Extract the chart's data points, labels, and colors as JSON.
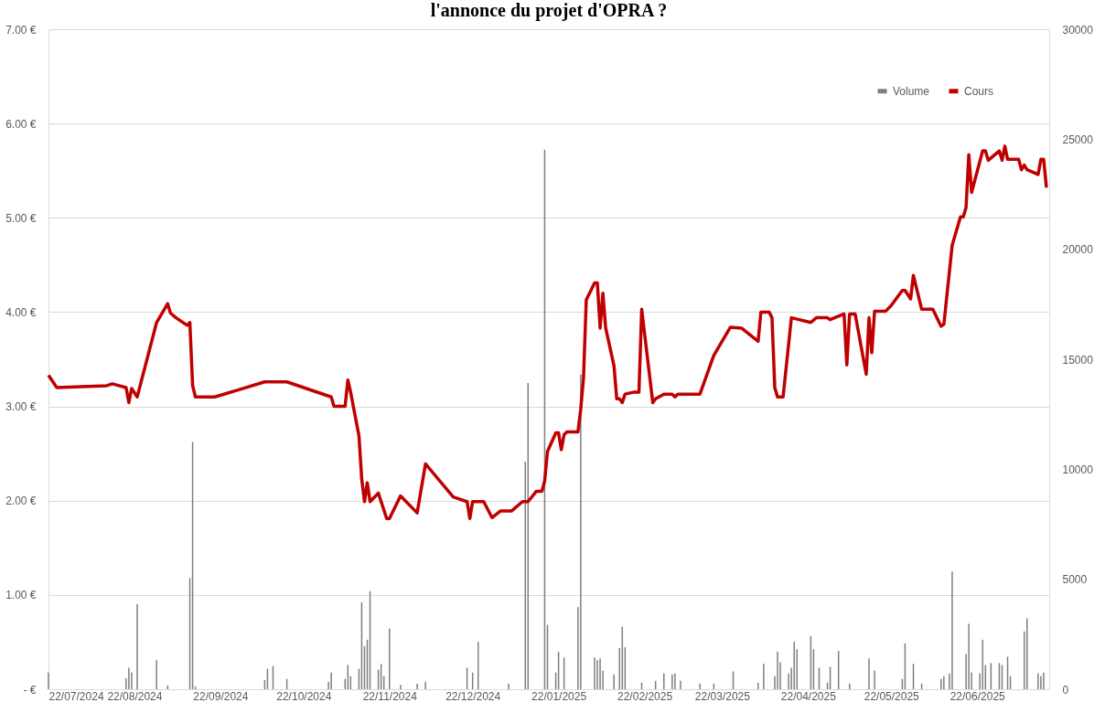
{
  "chart_data": {
    "type": "line",
    "title": "l'annonce du projet d'OPRA ?",
    "xlim": [
      "2024-07-22",
      "2025-07-18"
    ],
    "xticks": [
      {
        "value": "2024-07-22",
        "label": "22/07/2024"
      },
      {
        "value": "2024-08-22",
        "label": "22/08/2024"
      },
      {
        "value": "2024-09-22",
        "label": "22/09/2024"
      },
      {
        "value": "2024-10-22",
        "label": "22/10/2024"
      },
      {
        "value": "2024-11-22",
        "label": "22/11/2024"
      },
      {
        "value": "2024-12-22",
        "label": "22/12/2024"
      },
      {
        "value": "2025-01-22",
        "label": "22/01/2025"
      },
      {
        "value": "2025-02-22",
        "label": "22/02/2025"
      },
      {
        "value": "2025-03-22",
        "label": "22/03/2025"
      },
      {
        "value": "2025-04-22",
        "label": "22/04/2025"
      },
      {
        "value": "2025-05-22",
        "label": "22/05/2025"
      },
      {
        "value": "2025-06-22",
        "label": "22/06/2025"
      }
    ],
    "ylim": [
      0,
      7
    ],
    "yticks": [
      {
        "value": 0,
        "label": "-   €"
      },
      {
        "value": 1,
        "label": "1.00 €"
      },
      {
        "value": 2,
        "label": "2.00 €"
      },
      {
        "value": 3,
        "label": "3.00 €"
      },
      {
        "value": 4,
        "label": "4.00 €"
      },
      {
        "value": 5,
        "label": "5.00 €"
      },
      {
        "value": 6,
        "label": "6.00 €"
      },
      {
        "value": 7,
        "label": "7.00 €"
      }
    ],
    "y2lim": [
      0,
      30000
    ],
    "y2ticks": [
      0,
      5000,
      10000,
      15000,
      20000,
      25000,
      30000
    ],
    "grid": "y",
    "legend": "top right",
    "line_style": "solid",
    "marker": "none",
    "series": [
      {
        "name": "Volume",
        "type": "bar",
        "axis": "y2",
        "color": "#7f7f7f",
        "x": [
          "2024-07-22",
          "2024-08-19",
          "2024-08-20",
          "2024-08-21",
          "2024-08-23",
          "2024-08-30",
          "2024-09-03",
          "2024-09-11",
          "2024-09-12",
          "2024-09-13",
          "2024-10-08",
          "2024-10-09",
          "2024-10-11",
          "2024-10-16",
          "2024-10-31",
          "2024-11-01",
          "2024-11-06",
          "2024-11-07",
          "2024-11-08",
          "2024-11-11",
          "2024-11-12",
          "2024-11-13",
          "2024-11-14",
          "2024-11-15",
          "2024-11-18",
          "2024-11-19",
          "2024-11-20",
          "2024-11-22",
          "2024-11-26",
          "2024-12-02",
          "2024-12-05",
          "2024-12-20",
          "2024-12-22",
          "2024-12-24",
          "2025-01-04",
          "2025-01-10",
          "2025-01-11",
          "2025-01-17",
          "2025-01-18",
          "2025-01-21",
          "2025-01-22",
          "2025-01-24",
          "2025-01-29",
          "2025-01-30",
          "2025-02-04",
          "2025-02-05",
          "2025-02-06",
          "2025-02-07",
          "2025-02-11",
          "2025-02-13",
          "2025-02-14",
          "2025-02-15",
          "2025-02-21",
          "2025-02-26",
          "2025-03-01",
          "2025-03-04",
          "2025-03-05",
          "2025-03-07",
          "2025-03-14",
          "2025-03-19",
          "2025-03-26",
          "2025-04-04",
          "2025-04-06",
          "2025-04-10",
          "2025-04-11",
          "2025-04-12",
          "2025-04-15",
          "2025-04-16",
          "2025-04-17",
          "2025-04-18",
          "2025-04-23",
          "2025-04-24",
          "2025-04-26",
          "2025-04-29",
          "2025-04-30",
          "2025-05-03",
          "2025-05-07",
          "2025-05-14",
          "2025-05-16",
          "2025-05-26",
          "2025-05-27",
          "2025-05-30",
          "2025-06-02",
          "2025-06-09",
          "2025-06-10",
          "2025-06-12",
          "2025-06-13",
          "2025-06-18",
          "2025-06-19",
          "2025-06-20",
          "2025-06-23",
          "2025-06-24",
          "2025-06-25",
          "2025-06-27",
          "2025-06-30",
          "2025-07-01",
          "2025-07-03",
          "2025-07-04",
          "2025-07-09",
          "2025-07-10",
          "2025-07-14",
          "2025-07-15",
          "2025-07-16"
        ],
        "values": [
          760,
          500,
          980,
          760,
          3860,
          1320,
          170,
          5050,
          11240,
          130,
          420,
          930,
          1060,
          470,
          340,
          760,
          470,
          1100,
          590,
          930,
          3950,
          1950,
          2250,
          4460,
          890,
          1150,
          590,
          2760,
          200,
          250,
          340,
          980,
          760,
          2160,
          250,
          10350,
          13920,
          24530,
          2930,
          760,
          1700,
          1440,
          3730,
          14300,
          1440,
          1320,
          1400,
          850,
          680,
          1870,
          2840,
          1910,
          300,
          380,
          720,
          680,
          720,
          380,
          250,
          250,
          810,
          300,
          1150,
          590,
          1700,
          1230,
          720,
          980,
          2160,
          1820,
          2420,
          1820,
          980,
          300,
          1020,
          1740,
          250,
          1400,
          850,
          470,
          2080,
          1150,
          250,
          470,
          590,
          720,
          5350,
          1610,
          2970,
          760,
          720,
          2250,
          1100,
          1190,
          1190,
          1100,
          1480,
          590,
          2630,
          3220,
          720,
          590,
          760
        ]
      },
      {
        "name": "Cours",
        "color": "#c00000",
        "x": [
          "2024-07-22",
          "2024-07-25",
          "2024-08-12",
          "2024-08-14",
          "2024-08-19",
          "2024-08-20",
          "2024-08-21",
          "2024-08-23",
          "2024-08-30",
          "2024-09-03",
          "2024-09-04",
          "2024-09-06",
          "2024-09-10",
          "2024-09-11",
          "2024-09-12",
          "2024-09-13",
          "2024-09-20",
          "2024-10-08",
          "2024-10-16",
          "2024-11-01",
          "2024-11-02",
          "2024-11-06",
          "2024-11-07",
          "2024-11-08",
          "2024-11-11",
          "2024-11-12",
          "2024-11-13",
          "2024-11-14",
          "2024-11-15",
          "2024-11-18",
          "2024-11-19",
          "2024-11-21",
          "2024-11-22",
          "2024-11-26",
          "2024-12-02",
          "2024-12-05",
          "2024-12-15",
          "2024-12-20",
          "2024-12-21",
          "2024-12-22",
          "2024-12-26",
          "2024-12-29",
          "2025-01-01",
          "2025-01-05",
          "2025-01-09",
          "2025-01-11",
          "2025-01-14",
          "2025-01-16",
          "2025-01-17",
          "2025-01-18",
          "2025-01-21",
          "2025-01-22",
          "2025-01-23",
          "2025-01-24",
          "2025-01-25",
          "2025-01-29",
          "2025-01-30",
          "2025-01-31",
          "2025-02-01",
          "2025-02-04",
          "2025-02-05",
          "2025-02-06",
          "2025-02-07",
          "2025-02-08",
          "2025-02-11",
          "2025-02-12",
          "2025-02-13",
          "2025-02-14",
          "2025-02-15",
          "2025-02-18",
          "2025-02-20",
          "2025-02-21",
          "2025-02-25",
          "2025-02-26",
          "2025-03-01",
          "2025-03-04",
          "2025-03-05",
          "2025-03-06",
          "2025-03-14",
          "2025-03-19",
          "2025-03-25",
          "2025-03-29",
          "2025-04-04",
          "2025-04-05",
          "2025-04-08",
          "2025-04-09",
          "2025-04-10",
          "2025-04-11",
          "2025-04-13",
          "2025-04-16",
          "2025-04-23",
          "2025-04-25",
          "2025-04-29",
          "2025-04-30",
          "2025-05-05",
          "2025-05-06",
          "2025-05-07",
          "2025-05-09",
          "2025-05-13",
          "2025-05-14",
          "2025-05-15",
          "2025-05-16",
          "2025-05-20",
          "2025-05-22",
          "2025-05-26",
          "2025-05-27",
          "2025-05-29",
          "2025-05-30",
          "2025-06-02",
          "2025-06-06",
          "2025-06-09",
          "2025-06-10",
          "2025-06-13",
          "2025-06-16",
          "2025-06-17",
          "2025-06-18",
          "2025-06-19",
          "2025-06-20",
          "2025-06-24",
          "2025-06-25",
          "2025-06-26",
          "2025-06-30",
          "2025-07-01",
          "2025-07-02",
          "2025-07-03",
          "2025-07-07",
          "2025-07-08",
          "2025-07-09",
          "2025-07-10",
          "2025-07-14",
          "2025-07-15",
          "2025-07-16",
          "2025-07-17"
        ],
        "values": [
          3.33,
          3.2,
          3.22,
          3.24,
          3.2,
          3.04,
          3.19,
          3.1,
          3.89,
          4.09,
          3.99,
          3.94,
          3.86,
          3.89,
          3.22,
          3.1,
          3.1,
          3.26,
          3.26,
          3.1,
          3.0,
          3.0,
          3.28,
          3.15,
          2.69,
          2.23,
          1.99,
          2.19,
          1.99,
          2.08,
          1.99,
          1.81,
          1.81,
          2.05,
          1.87,
          2.39,
          2.04,
          1.99,
          1.81,
          1.99,
          1.99,
          1.82,
          1.89,
          1.89,
          1.99,
          1.99,
          2.1,
          2.1,
          2.21,
          2.52,
          2.72,
          2.72,
          2.54,
          2.7,
          2.73,
          2.73,
          2.97,
          3.3,
          4.13,
          4.31,
          4.31,
          3.83,
          4.2,
          3.83,
          3.43,
          3.08,
          3.08,
          3.04,
          3.13,
          3.15,
          3.15,
          4.03,
          3.04,
          3.08,
          3.13,
          3.13,
          3.1,
          3.13,
          3.13,
          3.54,
          3.84,
          3.83,
          3.69,
          4.0,
          4.0,
          3.94,
          3.2,
          3.1,
          3.1,
          3.94,
          3.89,
          3.94,
          3.94,
          3.92,
          3.98,
          3.44,
          3.98,
          3.98,
          3.34,
          3.94,
          3.57,
          4.01,
          4.01,
          4.07,
          4.23,
          4.23,
          4.14,
          4.39,
          4.03,
          4.03,
          3.85,
          3.87,
          4.71,
          5.01,
          5.01,
          5.11,
          5.67,
          5.27,
          5.71,
          5.71,
          5.61,
          5.71,
          5.61,
          5.76,
          5.62,
          5.62,
          5.51,
          5.56,
          5.51,
          5.46,
          5.62,
          5.62,
          5.32
        ]
      }
    ]
  }
}
